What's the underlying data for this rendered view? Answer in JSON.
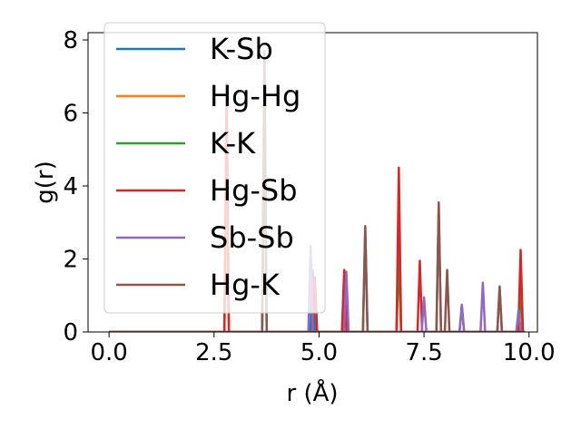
{
  "chart_data": {
    "type": "line",
    "xlabel": "r (Å)",
    "ylabel": "g(r)",
    "xlim": [
      -0.5,
      10.2
    ],
    "ylim": [
      0,
      8.2
    ],
    "x_ticks": [
      0.0,
      2.5,
      5.0,
      7.5,
      10.0
    ],
    "x_tick_labels": [
      "0.0",
      "2.5",
      "5.0",
      "7.5",
      "10.0"
    ],
    "y_ticks": [
      0,
      2,
      4,
      6,
      8
    ],
    "y_tick_labels": [
      "0",
      "2",
      "4",
      "6",
      "8"
    ],
    "legend_position": "top-left",
    "series": [
      {
        "name": "K-Sb",
        "color": "#1f77b4",
        "peaks": [
          [
            3.7,
            6.2
          ],
          [
            4.85,
            1.7
          ],
          [
            6.1,
            2.8
          ],
          [
            7.85,
            3.4
          ],
          [
            9.3,
            1.2
          ]
        ]
      },
      {
        "name": "Hg-Hg",
        "color": "#ff7f0e",
        "peaks": [
          [
            2.8,
            3.0
          ],
          [
            4.9,
            1.4
          ],
          [
            6.9,
            2.0
          ],
          [
            9.8,
            0.8
          ]
        ]
      },
      {
        "name": "K-K",
        "color": "#2ca02c",
        "peaks": [
          [
            3.7,
            5.5
          ],
          [
            5.6,
            1.5
          ],
          [
            6.9,
            2.25
          ],
          [
            8.4,
            0.7
          ],
          [
            9.8,
            1.1
          ]
        ]
      },
      {
        "name": "Hg-Sb",
        "color": "#d62728",
        "peaks": [
          [
            2.8,
            6.8
          ],
          [
            4.9,
            1.5
          ],
          [
            5.6,
            1.7
          ],
          [
            6.9,
            4.5
          ],
          [
            7.4,
            1.95
          ],
          [
            9.8,
            2.25
          ]
        ]
      },
      {
        "name": "Sb-Sb",
        "color": "#9467bd",
        "peaks": [
          [
            4.8,
            2.35
          ],
          [
            5.65,
            1.65
          ],
          [
            7.5,
            0.95
          ],
          [
            8.4,
            0.75
          ],
          [
            8.9,
            1.35
          ],
          [
            9.75,
            0.6
          ]
        ]
      },
      {
        "name": "Hg-K",
        "color": "#8c564b",
        "peaks": [
          [
            3.7,
            7.7
          ],
          [
            6.1,
            2.9
          ],
          [
            7.85,
            3.55
          ],
          [
            8.05,
            1.7
          ],
          [
            9.3,
            1.25
          ]
        ]
      }
    ]
  }
}
